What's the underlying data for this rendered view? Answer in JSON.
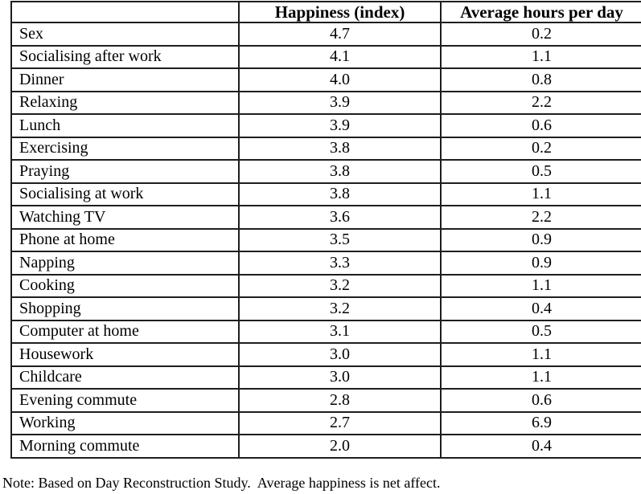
{
  "table": {
    "columns": [
      "",
      "Happiness (index)",
      "Average hours per day"
    ],
    "rows": [
      {
        "activity": "Sex",
        "happiness": "4.7",
        "hours": "0.2"
      },
      {
        "activity": "Socialising after work",
        "happiness": "4.1",
        "hours": "1.1"
      },
      {
        "activity": "Dinner",
        "happiness": "4.0",
        "hours": "0.8"
      },
      {
        "activity": "Relaxing",
        "happiness": "3.9",
        "hours": "2.2"
      },
      {
        "activity": "Lunch",
        "happiness": "3.9",
        "hours": "0.6"
      },
      {
        "activity": "Exercising",
        "happiness": "3.8",
        "hours": "0.2"
      },
      {
        "activity": "Praying",
        "happiness": "3.8",
        "hours": "0.5"
      },
      {
        "activity": "Socialising at work",
        "happiness": "3.8",
        "hours": "1.1"
      },
      {
        "activity": "Watching TV",
        "happiness": "3.6",
        "hours": "2.2"
      },
      {
        "activity": "Phone at home",
        "happiness": "3.5",
        "hours": "0.9"
      },
      {
        "activity": "Napping",
        "happiness": "3.3",
        "hours": "0.9"
      },
      {
        "activity": "Cooking",
        "happiness": "3.2",
        "hours": "1.1"
      },
      {
        "activity": "Shopping",
        "happiness": "3.2",
        "hours": "0.4"
      },
      {
        "activity": "Computer at home",
        "happiness": "3.1",
        "hours": "0.5"
      },
      {
        "activity": "Housework",
        "happiness": "3.0",
        "hours": "1.1"
      },
      {
        "activity": "Childcare",
        "happiness": "3.0",
        "hours": "1.1"
      },
      {
        "activity": "Evening commute",
        "happiness": "2.8",
        "hours": "0.6"
      },
      {
        "activity": "Working",
        "happiness": "2.7",
        "hours": "6.9"
      },
      {
        "activity": "Morning commute",
        "happiness": "2.0",
        "hours": "0.4"
      }
    ]
  },
  "note": "Note: Based on Day Reconstruction Study.  Average happiness is net affect.",
  "colors": {
    "border": "#1e1e1e",
    "text": "#000000",
    "background": "#ffffff"
  },
  "chart_data": {
    "type": "table",
    "title": "",
    "categories": [
      "Sex",
      "Socialising after work",
      "Dinner",
      "Relaxing",
      "Lunch",
      "Exercising",
      "Praying",
      "Socialising at work",
      "Watching TV",
      "Phone at home",
      "Napping",
      "Cooking",
      "Shopping",
      "Computer at home",
      "Housework",
      "Childcare",
      "Evening commute",
      "Working",
      "Morning commute"
    ],
    "series": [
      {
        "name": "Happiness (index)",
        "values": [
          4.7,
          4.1,
          4.0,
          3.9,
          3.9,
          3.8,
          3.8,
          3.8,
          3.6,
          3.5,
          3.3,
          3.2,
          3.2,
          3.1,
          3.0,
          3.0,
          2.8,
          2.7,
          2.0
        ]
      },
      {
        "name": "Average hours per day",
        "values": [
          0.2,
          1.1,
          0.8,
          2.2,
          0.6,
          0.2,
          0.5,
          1.1,
          2.2,
          0.9,
          0.9,
          1.1,
          0.4,
          0.5,
          1.1,
          1.1,
          0.6,
          6.9,
          0.4
        ]
      }
    ],
    "note": "Note: Based on Day Reconstruction Study.  Average happiness is net affect."
  }
}
